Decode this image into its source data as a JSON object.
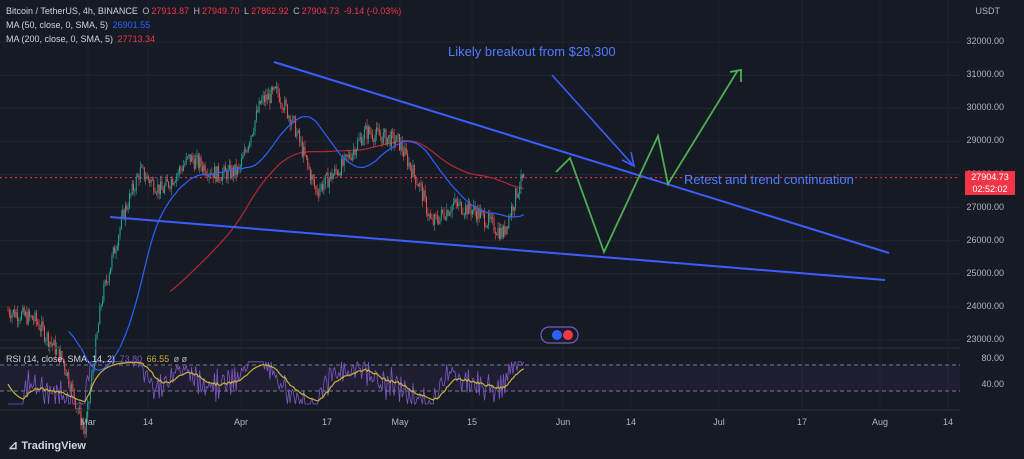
{
  "header": {
    "symbol": "Bitcoin / TetherUS, 4h, BINANCE",
    "o_label": "O",
    "o_value": "27913.87",
    "h_label": "H",
    "h_value": "27949.70",
    "l_label": "L",
    "l_value": "27862.92",
    "c_label": "C",
    "c_value": "27904.73",
    "change": "-9.14 (-0.03%)",
    "ma50_label": "MA (50, close, 0, SMA, 5)",
    "ma50_value": "26901.55",
    "ma200_label": "MA (200, close, 0, SMA, 5)",
    "ma200_value": "27713.34",
    "currency": "USDT"
  },
  "price_tag": {
    "value": "27904.73",
    "countdown": "02:52:02"
  },
  "annotations": {
    "breakout": "Likely breakout from $28,300",
    "retest": "Retest and trend continuation"
  },
  "rsi": {
    "label": "RSI (14, close, SMA, 14, 2)",
    "value1": "73.80",
    "value2": "66.55",
    "tail": "ø ø",
    "levels": [
      "80.00",
      "40.00"
    ]
  },
  "colors": {
    "bg": "#161a25",
    "up": "#26a69a",
    "down": "#ef5350",
    "ma50": "#2962ff",
    "ma200": "#b22833",
    "trendline": "#3c5dff",
    "projection": "#4caf50",
    "rsi": "#c9b13a",
    "rsi_ma": "#7e57c2"
  },
  "branding": {
    "name": "TradingView"
  },
  "chart_data": {
    "type": "candlestick",
    "title": "Bitcoin / TetherUS, 4h, BINANCE",
    "y_unit": "USDT",
    "y_ticks": [
      23000,
      24000,
      25000,
      26000,
      27000,
      28000,
      29000,
      30000,
      31000,
      32000
    ],
    "y_tick_labels": [
      "23000.00",
      "24000.00",
      "25000.00",
      "26000.00",
      "27000.00",
      "28000.00",
      "29000.00",
      "30000.00",
      "31000.00",
      "32000.00"
    ],
    "x_tick_labels": [
      "Mar",
      "14",
      "Apr",
      "17",
      "May",
      "15",
      "Jun",
      "14",
      "Jul",
      "17",
      "Aug",
      "14"
    ],
    "approx_close_path": [
      {
        "date": "2023-02-24",
        "price": 23900
      },
      {
        "date": "2023-03-01",
        "price": 23600
      },
      {
        "date": "2023-03-06",
        "price": 22400
      },
      {
        "date": "2023-03-10",
        "price": 20200
      },
      {
        "date": "2023-03-13",
        "price": 24200
      },
      {
        "date": "2023-03-17",
        "price": 26800
      },
      {
        "date": "2023-03-20",
        "price": 28100
      },
      {
        "date": "2023-03-24",
        "price": 27500
      },
      {
        "date": "2023-03-29",
        "price": 28500
      },
      {
        "date": "2023-04-03",
        "price": 28000
      },
      {
        "date": "2023-04-07",
        "price": 28100
      },
      {
        "date": "2023-04-11",
        "price": 30200
      },
      {
        "date": "2023-04-14",
        "price": 30500
      },
      {
        "date": "2023-04-17",
        "price": 29500
      },
      {
        "date": "2023-04-21",
        "price": 27500
      },
      {
        "date": "2023-04-26",
        "price": 28300
      },
      {
        "date": "2023-04-30",
        "price": 29300
      },
      {
        "date": "2023-05-06",
        "price": 29000
      },
      {
        "date": "2023-05-10",
        "price": 27600
      },
      {
        "date": "2023-05-12",
        "price": 26500
      },
      {
        "date": "2023-05-16",
        "price": 27100
      },
      {
        "date": "2023-05-20",
        "price": 26900
      },
      {
        "date": "2023-05-25",
        "price": 26200
      },
      {
        "date": "2023-05-28",
        "price": 27700
      },
      {
        "date": "2023-05-29",
        "price": 27900
      }
    ],
    "ma50_last": 26901.55,
    "ma200_last": 27713.34,
    "last_price": 27904.73,
    "rsi_last": 66.55
  }
}
